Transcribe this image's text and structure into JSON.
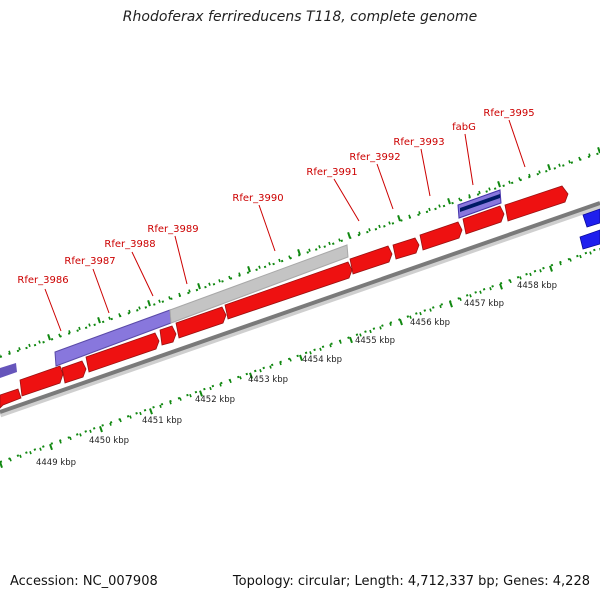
{
  "title": "Rhodoferax ferrireducens T118, complete genome",
  "footer": {
    "accession": "Accession: NC_007908",
    "topology": "Topology: circular; Length: 4,712,337 bp; Genes: 4,228"
  },
  "colors": {
    "gene": "#ee1111",
    "gene_label": "#cc0000",
    "rna": "#7766cc",
    "gray_feature": "#bbbbbb",
    "strand_blue": "#1f1fee",
    "navy": "#001a66",
    "tick": "#118811",
    "backbone": "#888888"
  },
  "gene_labels": [
    "Rfer_3986",
    "Rfer_3987",
    "Rfer_3988",
    "Rfer_3989",
    "Rfer_3990",
    "Rfer_3991",
    "Rfer_3992",
    "Rfer_3993",
    "fabG",
    "Rfer_3995"
  ],
  "kbp_labels": [
    "4449 kbp",
    "4450 kbp",
    "4451 kbp",
    "4452 kbp",
    "4453 kbp",
    "4454 kbp",
    "4455 kbp",
    "4456 kbp",
    "4457 kbp",
    "4458 kbp"
  ]
}
